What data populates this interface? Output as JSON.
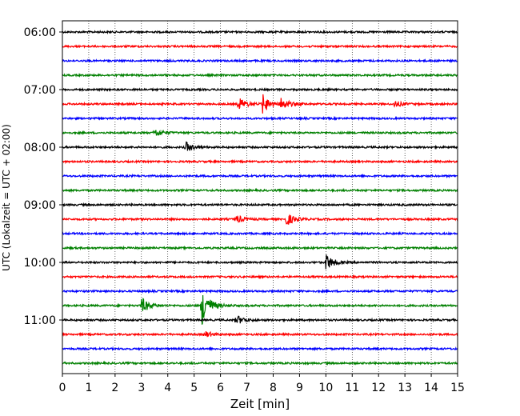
{
  "chart_data": {
    "type": "line",
    "title": "",
    "xlabel": "Zeit  [min]",
    "ylabel": "UTC (Lokalzeit = UTC + 02:00)",
    "xlim": [
      0,
      15
    ],
    "x_ticks": [
      "0",
      "1",
      "2",
      "3",
      "4",
      "5",
      "6",
      "7",
      "8",
      "9",
      "10",
      "11",
      "12",
      "13",
      "14",
      "15"
    ],
    "y_tick_labels": [
      "06:00",
      "07:00",
      "08:00",
      "09:00",
      "10:00",
      "11:00"
    ],
    "grid": "vertical-dotted",
    "line_colors": [
      "#000000",
      "#ff0000",
      "#0000ff",
      "#008000"
    ],
    "trace_rows": [
      "06:00",
      "06:15",
      "06:30",
      "06:45",
      "07:00",
      "07:15",
      "07:30",
      "07:45",
      "08:00",
      "08:15",
      "08:30",
      "08:45",
      "09:00",
      "09:15",
      "09:30",
      "09:45",
      "10:00",
      "10:15",
      "10:30",
      "10:45",
      "11:00",
      "11:15",
      "11:30",
      "11:45"
    ],
    "events": [
      {
        "row": 5,
        "t": 6.7,
        "amp": 8
      },
      {
        "row": 5,
        "t": 7.6,
        "amp": 12
      },
      {
        "row": 5,
        "t": 8.3,
        "amp": 8
      },
      {
        "row": 5,
        "t": 12.6,
        "amp": 4
      },
      {
        "row": 7,
        "t": 3.5,
        "amp": 5
      },
      {
        "row": 8,
        "t": 4.7,
        "amp": 6
      },
      {
        "row": 13,
        "t": 6.6,
        "amp": 5
      },
      {
        "row": 13,
        "t": 8.5,
        "amp": 8
      },
      {
        "row": 16,
        "t": 10.0,
        "amp": 10
      },
      {
        "row": 19,
        "t": 3.0,
        "amp": 10
      },
      {
        "row": 19,
        "t": 5.3,
        "amp": 25
      },
      {
        "row": 20,
        "t": 6.6,
        "amp": 6
      },
      {
        "row": 21,
        "t": 5.4,
        "amp": 4
      }
    ]
  }
}
